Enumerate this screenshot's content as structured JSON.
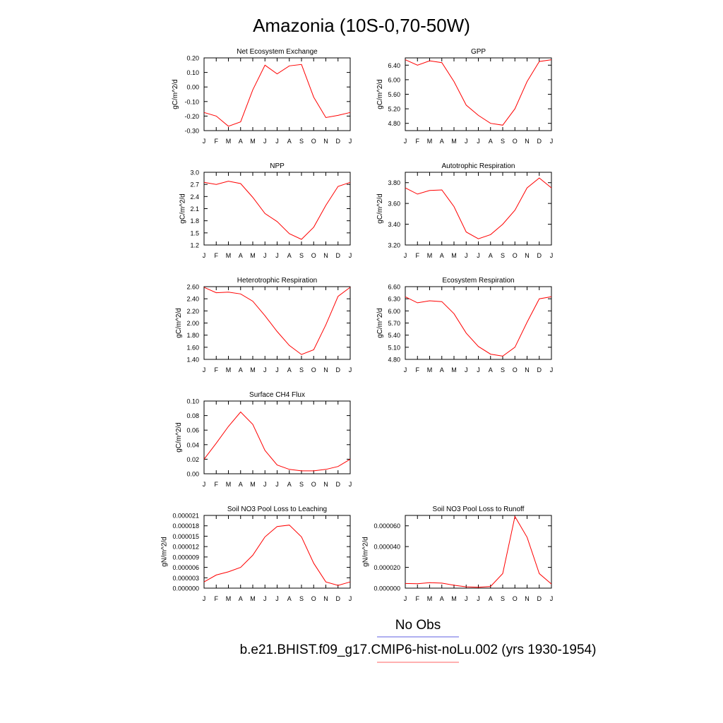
{
  "title": "Amazonia (10S-0,70-50W)",
  "legend": {
    "entries": [
      {
        "label": "No Obs",
        "color": "#6060e0"
      },
      {
        "label": "b.e21.BHIST.f09_g17.CMIP6-hist-noLu.002 (yrs 1930-1954)",
        "color": "#ff6060"
      }
    ]
  },
  "chart_data": [
    {
      "type": "line",
      "title": "Net Ecosystem Exchange",
      "ylabel": "gC/m^2/d",
      "categories": [
        "J",
        "F",
        "M",
        "A",
        "M",
        "J",
        "J",
        "A",
        "S",
        "O",
        "N",
        "D",
        "J"
      ],
      "ylim": [
        -0.3,
        0.2
      ],
      "yticks": [
        "-0.30",
        "-0.20",
        "-0.10",
        "0.00",
        "0.10",
        "0.20"
      ],
      "series": [
        {
          "values": [
            -0.175,
            -0.2,
            -0.27,
            -0.24,
            -0.02,
            0.15,
            0.09,
            0.145,
            0.155,
            -0.07,
            -0.21,
            -0.195,
            -0.175
          ],
          "color": "#ff0000"
        }
      ]
    },
    {
      "type": "line",
      "title": "GPP",
      "ylabel": "gC/m^2/d",
      "categories": [
        "J",
        "F",
        "M",
        "A",
        "M",
        "J",
        "J",
        "A",
        "S",
        "O",
        "N",
        "D",
        "J"
      ],
      "ylim": [
        4.6,
        6.6
      ],
      "yticks": [
        "4.80",
        "5.20",
        "5.60",
        "6.00",
        "6.40"
      ],
      "series": [
        {
          "values": [
            6.55,
            6.4,
            6.52,
            6.47,
            5.95,
            5.3,
            5.02,
            4.8,
            4.75,
            5.2,
            5.95,
            6.5,
            6.55
          ],
          "color": "#ff0000"
        }
      ]
    },
    {
      "type": "line",
      "title": "NPP",
      "ylabel": "gC/m^2/d",
      "categories": [
        "J",
        "F",
        "M",
        "A",
        "M",
        "J",
        "J",
        "A",
        "S",
        "O",
        "N",
        "D",
        "J"
      ],
      "ylim": [
        1.2,
        3.0
      ],
      "yticks": [
        "1.2",
        "1.5",
        "1.8",
        "2.1",
        "2.4",
        "2.7",
        "3.0"
      ],
      "series": [
        {
          "values": [
            2.75,
            2.7,
            2.78,
            2.72,
            2.38,
            1.98,
            1.78,
            1.48,
            1.34,
            1.64,
            2.18,
            2.65,
            2.75
          ],
          "color": "#ff0000"
        }
      ]
    },
    {
      "type": "line",
      "title": "Autotrophic Respiration",
      "ylabel": "gC/m^2/d",
      "categories": [
        "J",
        "F",
        "M",
        "A",
        "M",
        "J",
        "J",
        "A",
        "S",
        "O",
        "N",
        "D",
        "J"
      ],
      "ylim": [
        3.2,
        3.9
      ],
      "yticks": [
        "3.20",
        "3.40",
        "3.60",
        "3.80"
      ],
      "series": [
        {
          "values": [
            3.75,
            3.69,
            3.725,
            3.73,
            3.57,
            3.325,
            3.26,
            3.3,
            3.4,
            3.535,
            3.75,
            3.845,
            3.75
          ],
          "color": "#ff0000"
        }
      ]
    },
    {
      "type": "line",
      "title": "Heterotrophic Respiration",
      "ylabel": "gC/m^2/d",
      "categories": [
        "J",
        "F",
        "M",
        "A",
        "M",
        "J",
        "J",
        "A",
        "S",
        "O",
        "N",
        "D",
        "J"
      ],
      "ylim": [
        1.4,
        2.6
      ],
      "yticks": [
        "1.40",
        "1.60",
        "1.80",
        "2.00",
        "2.20",
        "2.40",
        "2.60"
      ],
      "series": [
        {
          "values": [
            2.59,
            2.5,
            2.51,
            2.48,
            2.36,
            2.12,
            1.86,
            1.63,
            1.48,
            1.56,
            1.97,
            2.44,
            2.59
          ],
          "color": "#ff0000"
        }
      ]
    },
    {
      "type": "line",
      "title": "Ecosystem Respiration",
      "ylabel": "gC/m^2/d",
      "categories": [
        "J",
        "F",
        "M",
        "A",
        "M",
        "J",
        "J",
        "A",
        "S",
        "O",
        "N",
        "D",
        "J"
      ],
      "ylim": [
        4.8,
        6.6
      ],
      "yticks": [
        "4.80",
        "5.10",
        "5.40",
        "5.70",
        "6.00",
        "6.30",
        "6.60"
      ],
      "series": [
        {
          "values": [
            6.35,
            6.2,
            6.25,
            6.23,
            5.93,
            5.45,
            5.12,
            4.93,
            4.88,
            5.1,
            5.72,
            6.3,
            6.35
          ],
          "color": "#ff0000"
        }
      ]
    },
    {
      "type": "line",
      "title": "Surface CH4 Flux",
      "ylabel": "gC/m^2/d",
      "categories": [
        "J",
        "F",
        "M",
        "A",
        "M",
        "J",
        "J",
        "A",
        "S",
        "O",
        "N",
        "D",
        "J"
      ],
      "ylim": [
        0.0,
        0.1
      ],
      "yticks": [
        "0.00",
        "0.02",
        "0.04",
        "0.06",
        "0.08",
        "0.10"
      ],
      "series": [
        {
          "values": [
            0.02,
            0.042,
            0.065,
            0.085,
            0.068,
            0.032,
            0.012,
            0.006,
            0.004,
            0.004,
            0.006,
            0.01,
            0.02
          ],
          "color": "#ff0000"
        }
      ]
    },
    {
      "type": "line",
      "title": "Soil NO3 Pool Loss to Leaching",
      "ylabel": "gN/m^2/d",
      "categories": [
        "J",
        "F",
        "M",
        "A",
        "M",
        "J",
        "J",
        "A",
        "S",
        "O",
        "N",
        "D",
        "J"
      ],
      "ylim": [
        0.0,
        2.1e-05
      ],
      "yticks": [
        "0.000000",
        "0.000003",
        "0.000006",
        "0.000009",
        "0.000012",
        "0.000015",
        "0.000018",
        "0.000021"
      ],
      "series": [
        {
          "values": [
            1.8e-06,
            3.8e-06,
            4.7e-06,
            6e-06,
            9.5e-06,
            1.48e-05,
            1.78e-05,
            1.82e-05,
            1.48e-05,
            7.2e-06,
            1.8e-06,
            8e-07,
            1.8e-06
          ],
          "color": "#ff0000"
        }
      ]
    },
    {
      "type": "line",
      "title": "Soil NO3 Pool Loss to Runoff",
      "ylabel": "gN/m^2/d",
      "categories": [
        "J",
        "F",
        "M",
        "A",
        "M",
        "J",
        "J",
        "A",
        "S",
        "O",
        "N",
        "D",
        "J"
      ],
      "ylim": [
        0.0,
        7e-05
      ],
      "yticks": [
        "0.000000",
        "0.000020",
        "0.000040",
        "0.000060"
      ],
      "series": [
        {
          "values": [
            4.5e-06,
            4.3e-06,
            5.3e-06,
            4.8e-06,
            2.8e-06,
            1.3e-06,
            8e-07,
            1.6e-06,
            1.4e-05,
            6.9e-05,
            4.9e-05,
            1.4e-05,
            4e-06
          ],
          "color": "#ff0000"
        }
      ]
    }
  ]
}
